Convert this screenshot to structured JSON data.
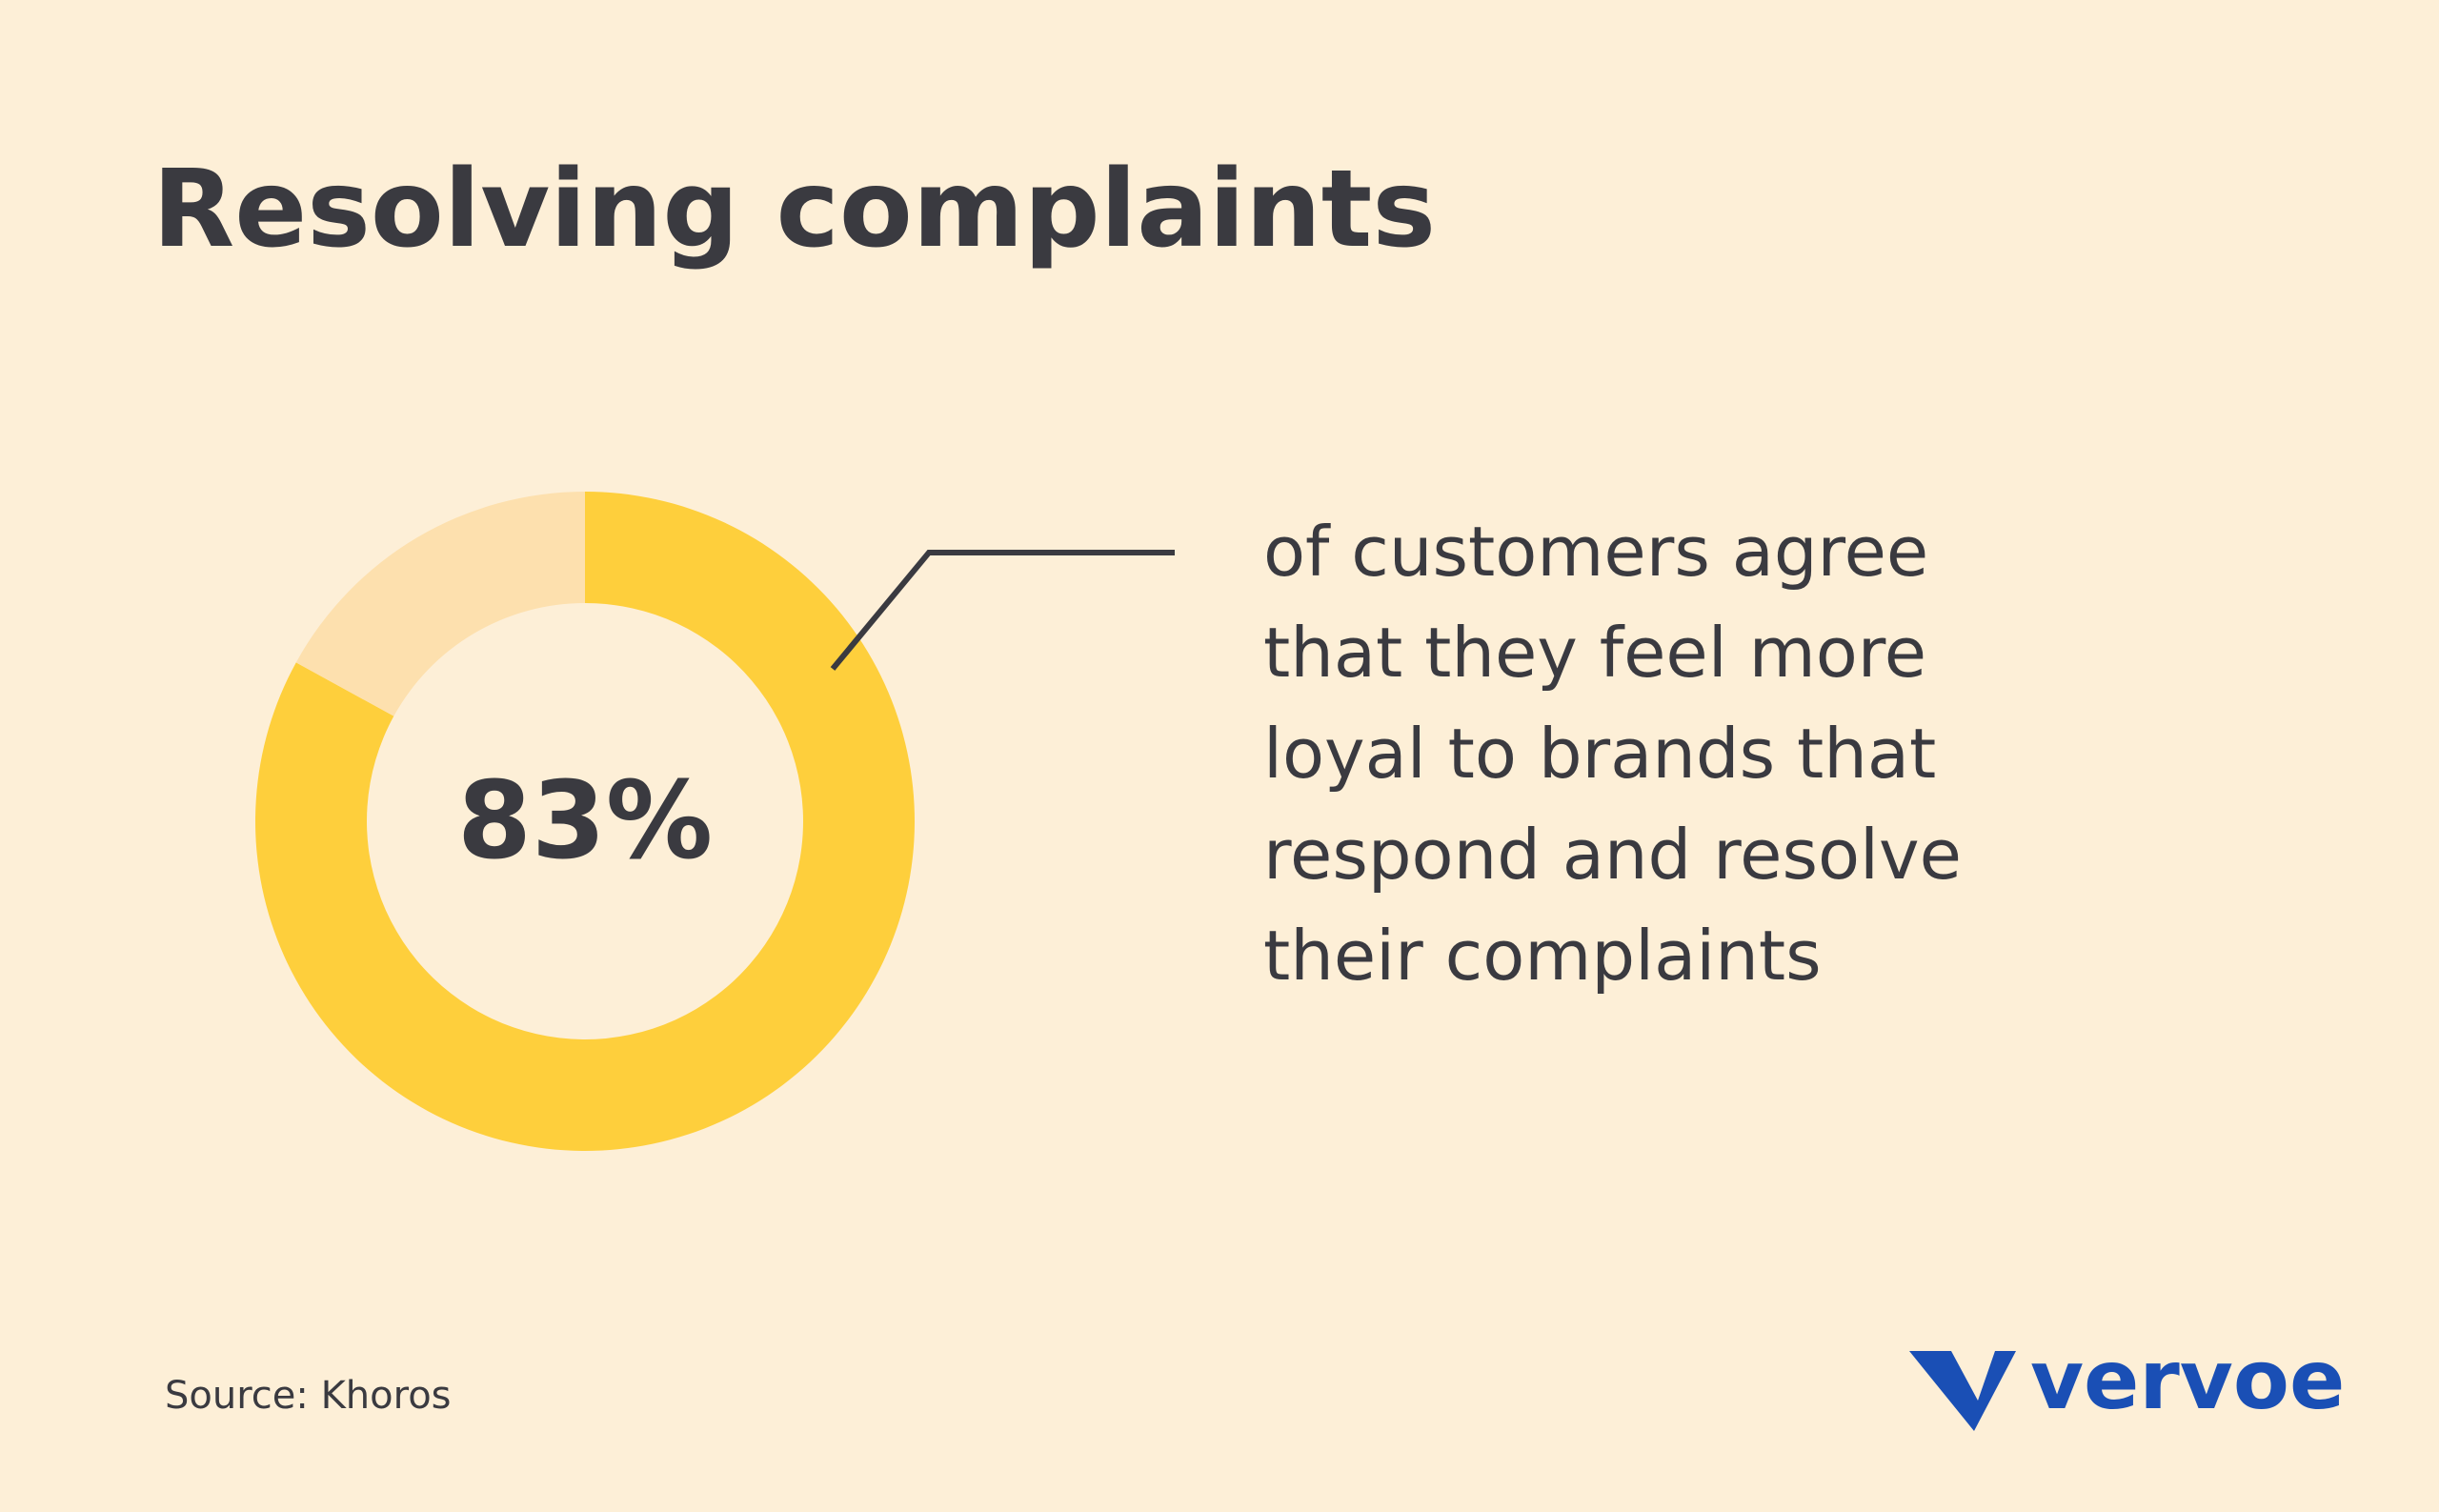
{
  "chart_data": {
    "type": "donut",
    "title": "Resolving complaints",
    "values": [
      83,
      17
    ],
    "value_labels": [
      "83%",
      null
    ],
    "colors": [
      "#fecf3c",
      "#fde0ae"
    ],
    "annotation": [
      "of customers agree",
      "that they feel more",
      "loyal to brands that",
      "respond and resolve",
      "their complaints"
    ],
    "source": "Source: Khoros",
    "brand": "vervoe"
  }
}
